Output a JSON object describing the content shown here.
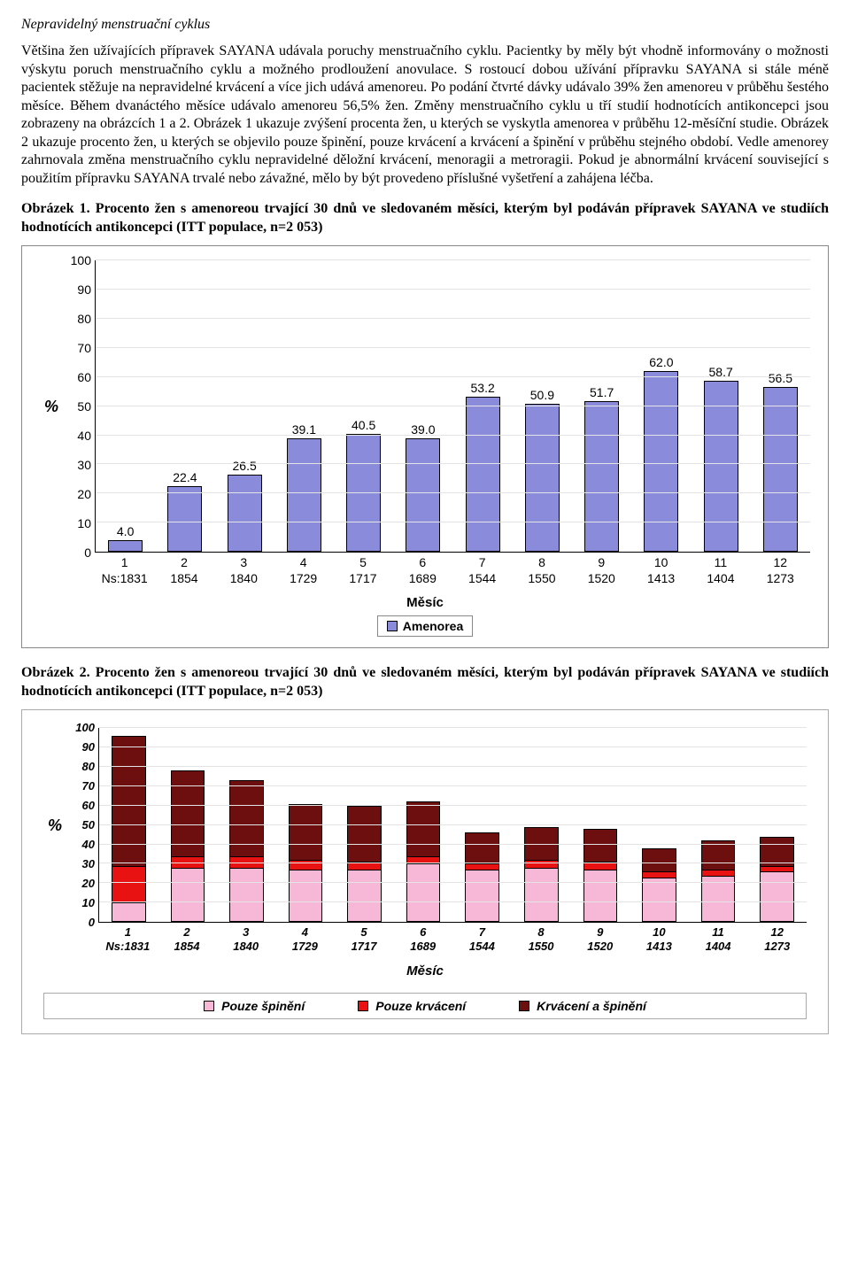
{
  "section_title": "Nepravidelný menstruační cyklus",
  "paragraph": "Většina žen užívajících přípravek SAYANA udávala poruchy menstruačního cyklu. Pacientky by měly být vhodně informovány o možnosti výskytu poruch menstruačního cyklu a možného prodloužení anovulace. S rostoucí dobou užívání přípravku SAYANA si stále méně pacientek stěžuje na nepravidelné krvácení a více jich udává amenoreu. Po podání čtvrté dávky udávalo 39% žen amenoreu v průběhu šestého měsíce. Během dvanáctého měsíce udávalo amenoreu 56,5% žen. Změny menstruačního cyklu u tří studií hodnotících antikoncepci jsou zobrazeny na obrázcích 1 a 2. Obrázek 1 ukazuje zvýšení procenta žen, u kterých se vyskytla amenorea v průběhu 12-měsíční studie. Obrázek 2 ukazuje procento žen, u kterých se objevilo pouze špinění, pouze krvácení a krvácení a špinění v průběhu stejného období. Vedle amenorey zahrnovala změna menstruačního cyklu nepravidelné děložní krvácení, menoragii a metroragii. Pokud je abnormální krvácení související s použitím přípravku SAYANA trvalé nebo závažné, mělo by být provedeno příslušné vyšetření a zahájena léčba.",
  "fig1_caption": "Obrázek 1. Procento žen s amenoreou trvající 30 dnů ve sledovaném měsíci, kterým byl podáván přípravek SAYANA ve studiích hodnotících antikoncepci (ITT populace, n=2 053)",
  "fig2_caption": "Obrázek 2. Procento žen s amenoreou trvající 30 dnů ve sledovaném měsíci, kterým byl podáván přípravek SAYANA ve studiích hodnotících antikoncepci (ITT populace, n=2 053)",
  "chart1": {
    "type": "bar",
    "y_label": "%",
    "x_title": "Měsíc",
    "ylim": [
      0,
      100
    ],
    "ytick_step": 10,
    "bar_color": "#8b8bdc",
    "bar_border": "#000000",
    "grid_color": "#e4e4e4",
    "background_color": "#ffffff",
    "categories": [
      "1",
      "2",
      "3",
      "4",
      "5",
      "6",
      "7",
      "8",
      "9",
      "10",
      "11",
      "12"
    ],
    "ns_prefix": "Ns:",
    "ns": [
      "1831",
      "1854",
      "1840",
      "1729",
      "1717",
      "1689",
      "1544",
      "1550",
      "1520",
      "1413",
      "1404",
      "1273"
    ],
    "values": [
      4.0,
      22.4,
      26.5,
      39.1,
      40.5,
      39.0,
      53.2,
      50.9,
      51.7,
      62.0,
      58.7,
      56.5
    ],
    "value_labels": [
      "4.0",
      "22.4",
      "26.5",
      "39.1",
      "40.5",
      "39.0",
      "53.2",
      "50.9",
      "51.7",
      "62.0",
      "58.7",
      "56.5"
    ],
    "legend_label": "Amenorea"
  },
  "chart2": {
    "type": "stacked-bar",
    "y_label": "%",
    "x_title": "Měsíc",
    "ylim": [
      0,
      100
    ],
    "ytick_step": 10,
    "background_color": "#ffffff",
    "grid_color": "#e4e4e4",
    "categories": [
      "1",
      "2",
      "3",
      "4",
      "5",
      "6",
      "7",
      "8",
      "9",
      "10",
      "11",
      "12"
    ],
    "ns_prefix": "Ns:",
    "ns": [
      "1831",
      "1854",
      "1840",
      "1729",
      "1717",
      "1689",
      "1544",
      "1550",
      "1520",
      "1413",
      "1404",
      "1273"
    ],
    "series": [
      {
        "name": "Pouze špinění",
        "color": "#f6b8d6",
        "values": [
          10,
          28,
          28,
          27,
          27,
          30,
          27,
          28,
          27,
          23,
          24,
          26
        ]
      },
      {
        "name": "Pouze krvácení",
        "color": "#e91212",
        "values": [
          19,
          6,
          6,
          5,
          4,
          4,
          3,
          4,
          4,
          3,
          3,
          3
        ]
      },
      {
        "name": "Krvácení a špinění",
        "color": "#6e0f0f",
        "values": [
          67,
          44,
          39,
          29,
          29,
          28,
          16,
          17,
          17,
          12,
          15,
          15
        ]
      }
    ]
  }
}
